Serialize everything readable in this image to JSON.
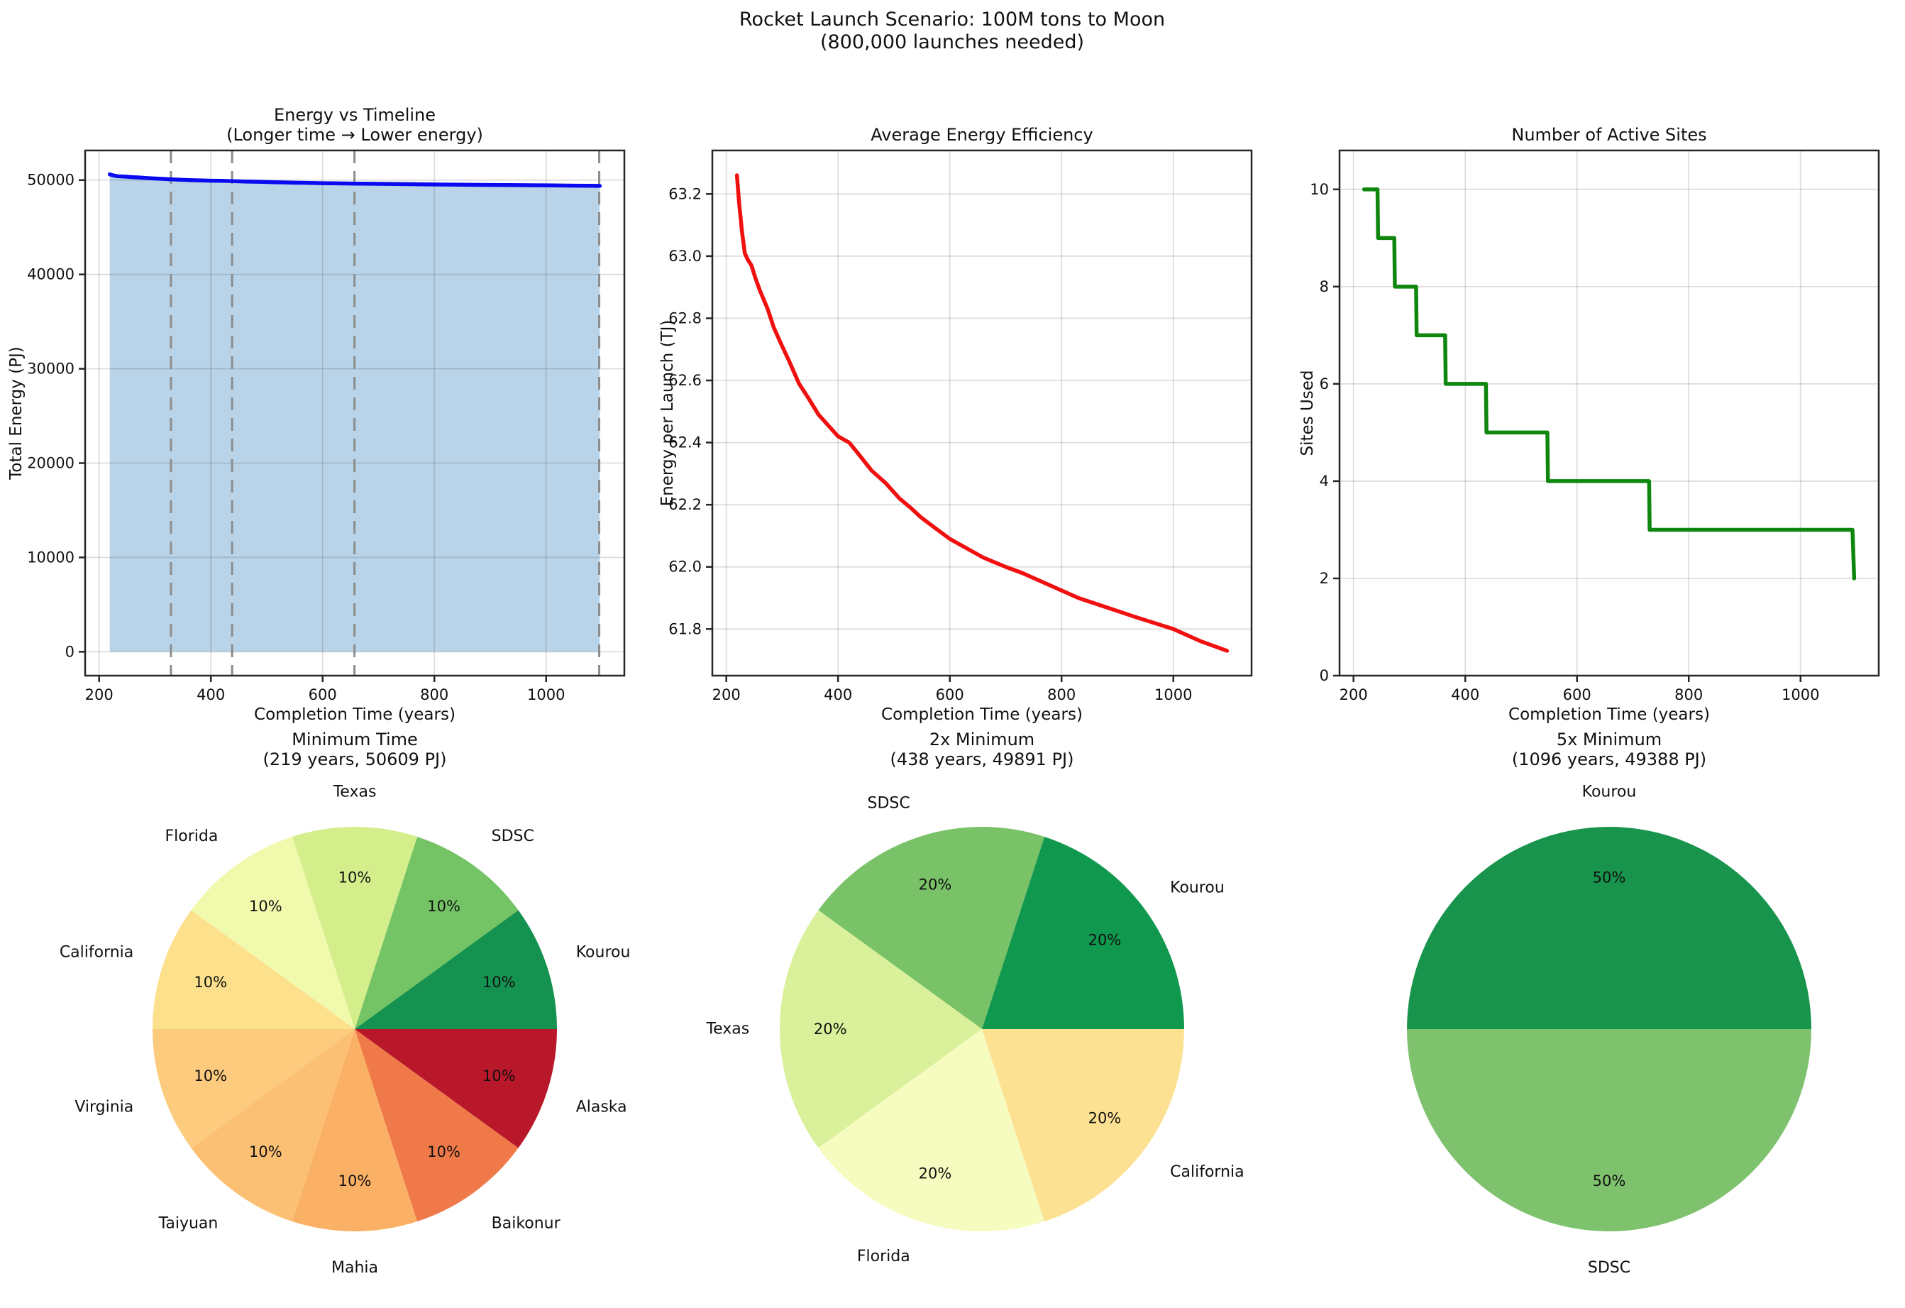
{
  "suptitle": {
    "line1": "Rocket Launch Scenario: 100M tons to Moon",
    "line2": "(800,000 launches needed)"
  },
  "chart_data": [
    {
      "id": "energy-vs-timeline",
      "type": "area",
      "title_lines": [
        "Energy vs Timeline",
        "(Longer time → Lower energy)"
      ],
      "xlabel": "Completion Time (years)",
      "ylabel": "Total Energy (PJ)",
      "xlim": [
        175,
        1140
      ],
      "ylim": [
        -2530,
        53140
      ],
      "x_ticks": [
        200,
        400,
        600,
        800,
        1000
      ],
      "y_ticks": [
        0,
        10000,
        20000,
        30000,
        40000,
        50000
      ],
      "tick_decimals": 0,
      "grid": true,
      "line_color": "#0a0af0",
      "fill_color": "#b9d4e9",
      "fill_baseline": 0,
      "vlines": [
        328.5,
        438,
        657,
        1095
      ],
      "vline_color": "#8c8c8c",
      "series": [
        [
          219,
          50609
        ],
        [
          223,
          50536
        ],
        [
          228,
          50464
        ],
        [
          233,
          50408
        ],
        [
          238,
          50392
        ],
        [
          245,
          50376
        ],
        [
          252,
          50344
        ],
        [
          260,
          50312
        ],
        [
          267,
          50288
        ],
        [
          274,
          50264
        ],
        [
          285,
          50216
        ],
        [
          300,
          50168
        ],
        [
          313,
          50128
        ],
        [
          330,
          50072
        ],
        [
          348,
          50032
        ],
        [
          365,
          49992
        ],
        [
          385,
          49960
        ],
        [
          400,
          49936
        ],
        [
          420,
          49920
        ],
        [
          438,
          49891
        ],
        [
          460,
          49848
        ],
        [
          485,
          49816
        ],
        [
          510,
          49776
        ],
        [
          530,
          49752
        ],
        [
          548,
          49728
        ],
        [
          570,
          49704
        ],
        [
          600,
          49672
        ],
        [
          630,
          49648
        ],
        [
          660,
          49624
        ],
        [
          700,
          49600
        ],
        [
          730,
          49584
        ],
        [
          780,
          49552
        ],
        [
          830,
          49520
        ],
        [
          880,
          49496
        ],
        [
          930,
          49472
        ],
        [
          1000,
          49440
        ],
        [
          1050,
          49408
        ],
        [
          1096,
          49388
        ]
      ]
    },
    {
      "id": "average-energy-efficiency",
      "type": "line",
      "title_lines": [
        "Average Energy Efficiency"
      ],
      "xlabel": "Completion Time (years)",
      "ylabel": "Energy per Launch (TJ)",
      "xlim": [
        175,
        1140
      ],
      "ylim": [
        61.65,
        63.34
      ],
      "x_ticks": [
        200,
        400,
        600,
        800,
        1000
      ],
      "y_ticks": [
        61.8,
        62.0,
        62.2,
        62.4,
        62.6,
        62.8,
        63.0,
        63.2
      ],
      "tick_decimals": 1,
      "grid": true,
      "line_color": "#f01010",
      "series": [
        [
          219,
          63.26
        ],
        [
          223,
          63.17
        ],
        [
          228,
          63.08
        ],
        [
          233,
          63.01
        ],
        [
          238,
          62.99
        ],
        [
          245,
          62.97
        ],
        [
          252,
          62.93
        ],
        [
          260,
          62.89
        ],
        [
          267,
          62.86
        ],
        [
          274,
          62.83
        ],
        [
          285,
          62.77
        ],
        [
          300,
          62.71
        ],
        [
          313,
          62.66
        ],
        [
          330,
          62.59
        ],
        [
          348,
          62.54
        ],
        [
          365,
          62.49
        ],
        [
          385,
          62.45
        ],
        [
          400,
          62.42
        ],
        [
          420,
          62.4
        ],
        [
          438,
          62.36
        ],
        [
          460,
          62.31
        ],
        [
          485,
          62.27
        ],
        [
          510,
          62.22
        ],
        [
          530,
          62.19
        ],
        [
          548,
          62.16
        ],
        [
          570,
          62.13
        ],
        [
          600,
          62.09
        ],
        [
          630,
          62.06
        ],
        [
          660,
          62.03
        ],
        [
          700,
          62.0
        ],
        [
          730,
          61.98
        ],
        [
          780,
          61.94
        ],
        [
          830,
          61.9
        ],
        [
          880,
          61.87
        ],
        [
          930,
          61.84
        ],
        [
          1000,
          61.8
        ],
        [
          1050,
          61.76
        ],
        [
          1096,
          61.73
        ]
      ]
    },
    {
      "id": "number-of-active-sites",
      "type": "step",
      "title_lines": [
        "Number of Active Sites"
      ],
      "xlabel": "Completion Time (years)",
      "ylabel": "Sites Used",
      "xlim": [
        175,
        1140
      ],
      "ylim": [
        0,
        10.8
      ],
      "x_ticks": [
        200,
        400,
        600,
        800,
        1000
      ],
      "y_ticks": [
        0,
        2,
        4,
        6,
        8,
        10
      ],
      "tick_decimals": 0,
      "grid": true,
      "line_color": "#0f870f",
      "series": [
        [
          219,
          10
        ],
        [
          243,
          10
        ],
        [
          244,
          9
        ],
        [
          273,
          9
        ],
        [
          274,
          8
        ],
        [
          312,
          8
        ],
        [
          313,
          7
        ],
        [
          364,
          7
        ],
        [
          365,
          6
        ],
        [
          437,
          6
        ],
        [
          438,
          5
        ],
        [
          547,
          5
        ],
        [
          548,
          4
        ],
        [
          729,
          4
        ],
        [
          730,
          3
        ],
        [
          1093,
          3
        ],
        [
          1096,
          2
        ]
      ]
    },
    {
      "id": "pie-minimum-time",
      "type": "pie",
      "title_lines": [
        "Minimum Time",
        "(219 years, 50609 PJ)"
      ],
      "start_angle_deg": 0,
      "direction": "counterclockwise",
      "slices": [
        {
          "label": "Kourou",
          "value": 10,
          "pct_label": "10%",
          "color": "#15924f"
        },
        {
          "label": "SDSC",
          "value": 10,
          "pct_label": "10%",
          "color": "#74c365"
        },
        {
          "label": "Texas",
          "value": 10,
          "pct_label": "10%",
          "color": "#d5ee8c"
        },
        {
          "label": "Florida",
          "value": 10,
          "pct_label": "10%",
          "color": "#f1f9ad"
        },
        {
          "label": "California",
          "value": 10,
          "pct_label": "10%",
          "color": "#fde08c"
        },
        {
          "label": "Virginia",
          "value": 10,
          "pct_label": "10%",
          "color": "#fdcb7e"
        },
        {
          "label": "Taiyuan",
          "value": 10,
          "pct_label": "10%",
          "color": "#fcc074"
        },
        {
          "label": "Mahia",
          "value": 10,
          "pct_label": "10%",
          "color": "#fbb165"
        },
        {
          "label": "Baikonur",
          "value": 10,
          "pct_label": "10%",
          "color": "#f0794a"
        },
        {
          "label": "Alaska",
          "value": 10,
          "pct_label": "10%",
          "color": "#b9182a"
        }
      ]
    },
    {
      "id": "pie-2x-minimum",
      "type": "pie",
      "title_lines": [
        "2x Minimum",
        "(438 years, 49891 PJ)"
      ],
      "start_angle_deg": 0,
      "direction": "counterclockwise",
      "slices": [
        {
          "label": "Kourou",
          "value": 20,
          "pct_label": "20%",
          "color": "#11984f"
        },
        {
          "label": "SDSC",
          "value": 20,
          "pct_label": "20%",
          "color": "#79c267"
        },
        {
          "label": "Texas",
          "value": 20,
          "pct_label": "20%",
          "color": "#daf09a"
        },
        {
          "label": "Florida",
          "value": 20,
          "pct_label": "20%",
          "color": "#f6fbbf"
        },
        {
          "label": "California",
          "value": 20,
          "pct_label": "20%",
          "color": "#fde193"
        }
      ]
    },
    {
      "id": "pie-5x-minimum",
      "type": "pie",
      "title_lines": [
        "5x Minimum",
        "(1096 years, 49388 PJ)"
      ],
      "start_angle_deg": 0,
      "direction": "counterclockwise",
      "slices": [
        {
          "label": "Kourou",
          "value": 50,
          "pct_label": "50%",
          "color": "#18944d"
        },
        {
          "label": "SDSC",
          "value": 50,
          "pct_label": "50%",
          "color": "#7ec26e"
        }
      ]
    }
  ]
}
